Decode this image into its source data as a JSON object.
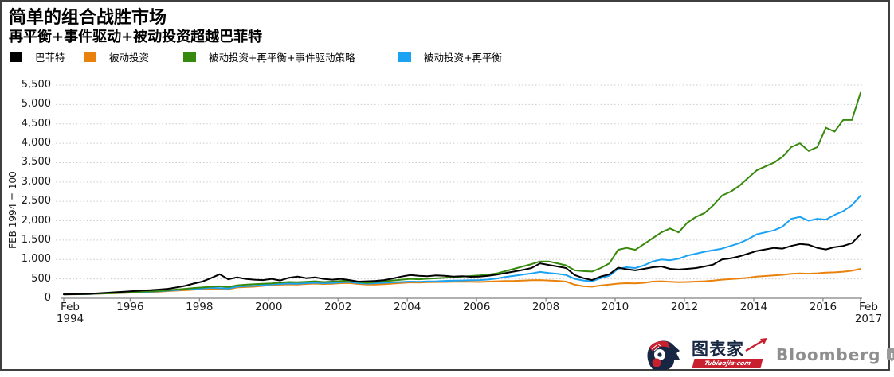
{
  "header": {
    "title": "简单的组合战胜市场",
    "subtitle": "再平衡+事件驱动+被动投资超越巴菲特"
  },
  "legend": {
    "items": [
      {
        "label": "巴菲特",
        "color": "#000000"
      },
      {
        "label": "被动投资",
        "color": "#e8820c"
      },
      {
        "label": "被动投资+再平衡+事件驱动策略",
        "color": "#37890d"
      },
      {
        "label": "被动投资+再平衡",
        "color": "#1ba2f2"
      }
    ]
  },
  "chart_data": {
    "type": "line",
    "title": "简单的组合战胜市场",
    "subtitle": "再平衡+事件驱动+被动投资超越巴菲特",
    "xlabel": "",
    "ylabel": "FEB 1994 = 100",
    "ylim": [
      0,
      5500
    ],
    "yticks": [
      0,
      500,
      1000,
      1500,
      2000,
      2500,
      3000,
      3500,
      4000,
      4500,
      5000,
      5500
    ],
    "grid": "dotted-horizontal",
    "legend_position": "top-left",
    "x_start_year": 1994.083,
    "x_end_year": 2017.083,
    "x_step_years": 0.25,
    "xticks": [
      {
        "pos": 1994.083,
        "label": "Feb\n1994"
      },
      {
        "pos": 1996,
        "label": "1996"
      },
      {
        "pos": 1998,
        "label": "1998"
      },
      {
        "pos": 2000,
        "label": "2000"
      },
      {
        "pos": 2002,
        "label": "2002"
      },
      {
        "pos": 2004,
        "label": "2004"
      },
      {
        "pos": 2006,
        "label": "2006"
      },
      {
        "pos": 2008,
        "label": "2008"
      },
      {
        "pos": 2010,
        "label": "2010"
      },
      {
        "pos": 2012,
        "label": "2012"
      },
      {
        "pos": 2014,
        "label": "2014"
      },
      {
        "pos": 2016,
        "label": "2016"
      },
      {
        "pos": 2017.083,
        "label": "Feb\n2017"
      }
    ],
    "series": [
      {
        "name": "被动投资",
        "color": "#e8820c",
        "values": [
          100,
          101,
          103,
          107,
          118,
          123,
          128,
          135,
          145,
          152,
          158,
          170,
          185,
          196,
          208,
          220,
          235,
          245,
          240,
          235,
          280,
          290,
          300,
          320,
          340,
          350,
          360,
          355,
          370,
          380,
          370,
          375,
          390,
          395,
          370,
          355,
          355,
          365,
          380,
          395,
          410,
          405,
          415,
          418,
          420,
          425,
          428,
          425,
          420,
          430,
          440,
          448,
          450,
          458,
          465,
          470,
          460,
          450,
          430,
          350,
          310,
          300,
          330,
          355,
          380,
          390,
          385,
          400,
          430,
          440,
          425,
          415,
          420,
          430,
          440,
          455,
          480,
          495,
          510,
          530,
          560,
          575,
          590,
          605,
          630,
          640,
          635,
          645,
          660,
          670,
          685,
          710,
          760
        ]
      },
      {
        "name": "被动投资+再平衡",
        "color": "#1ba2f2",
        "values": [
          100,
          102,
          104,
          108,
          122,
          128,
          134,
          142,
          152,
          160,
          168,
          180,
          195,
          210,
          225,
          240,
          255,
          270,
          260,
          250,
          300,
          310,
          320,
          340,
          360,
          370,
          380,
          375,
          390,
          400,
          390,
          395,
          410,
          420,
          390,
          380,
          390,
          400,
          410,
          420,
          430,
          425,
          435,
          440,
          450,
          455,
          460,
          465,
          470,
          485,
          510,
          550,
          580,
          610,
          640,
          680,
          650,
          630,
          600,
          500,
          460,
          440,
          520,
          580,
          760,
          800,
          780,
          850,
          950,
          1000,
          980,
          1020,
          1100,
          1150,
          1200,
          1240,
          1280,
          1350,
          1420,
          1520,
          1650,
          1700,
          1750,
          1850,
          2050,
          2100,
          2000,
          2050,
          2030,
          2150,
          2250,
          2400,
          2650
        ]
      },
      {
        "name": "被动投资+再平衡+事件驱动策略",
        "color": "#37890d",
        "values": [
          100,
          102,
          105,
          110,
          118,
          126,
          134,
          145,
          158,
          168,
          178,
          190,
          205,
          225,
          245,
          265,
          280,
          300,
          310,
          290,
          335,
          350,
          365,
          375,
          385,
          405,
          420,
          415,
          425,
          440,
          420,
          430,
          445,
          460,
          420,
          400,
          420,
          440,
          460,
          480,
          500,
          490,
          505,
          515,
          530,
          545,
          560,
          575,
          590,
          610,
          640,
          700,
          760,
          820,
          880,
          950,
          950,
          900,
          850,
          720,
          700,
          690,
          780,
          900,
          1250,
          1300,
          1250,
          1400,
          1550,
          1700,
          1800,
          1700,
          1950,
          2100,
          2200,
          2400,
          2650,
          2750,
          2900,
          3100,
          3300,
          3400,
          3500,
          3650,
          3900,
          4000,
          3800,
          3900,
          4400,
          4300,
          4600,
          4600,
          5300
        ]
      },
      {
        "name": "巴菲特",
        "color": "#000000",
        "values": [
          100,
          103,
          106,
          112,
          130,
          142,
          155,
          170,
          185,
          200,
          210,
          225,
          245,
          280,
          320,
          380,
          430,
          520,
          620,
          490,
          540,
          500,
          480,
          470,
          500,
          460,
          530,
          560,
          520,
          540,
          500,
          480,
          500,
          470,
          430,
          440,
          450,
          470,
          510,
          560,
          600,
          580,
          570,
          590,
          580,
          560,
          570,
          555,
          560,
          580,
          610,
          650,
          690,
          730,
          780,
          900,
          860,
          820,
          780,
          600,
          520,
          470,
          560,
          620,
          790,
          750,
          720,
          760,
          800,
          820,
          760,
          740,
          760,
          780,
          820,
          870,
          1000,
          1030,
          1080,
          1150,
          1220,
          1260,
          1300,
          1280,
          1350,
          1400,
          1380,
          1300,
          1260,
          1320,
          1350,
          1420,
          1650
        ]
      }
    ]
  },
  "axes": {
    "y_title": "FEB 1994 = 100"
  },
  "footer": {
    "brand_cn": "图表家",
    "brand_domain": "Tubiaojia·com",
    "brand_right": "Bloomberg"
  }
}
